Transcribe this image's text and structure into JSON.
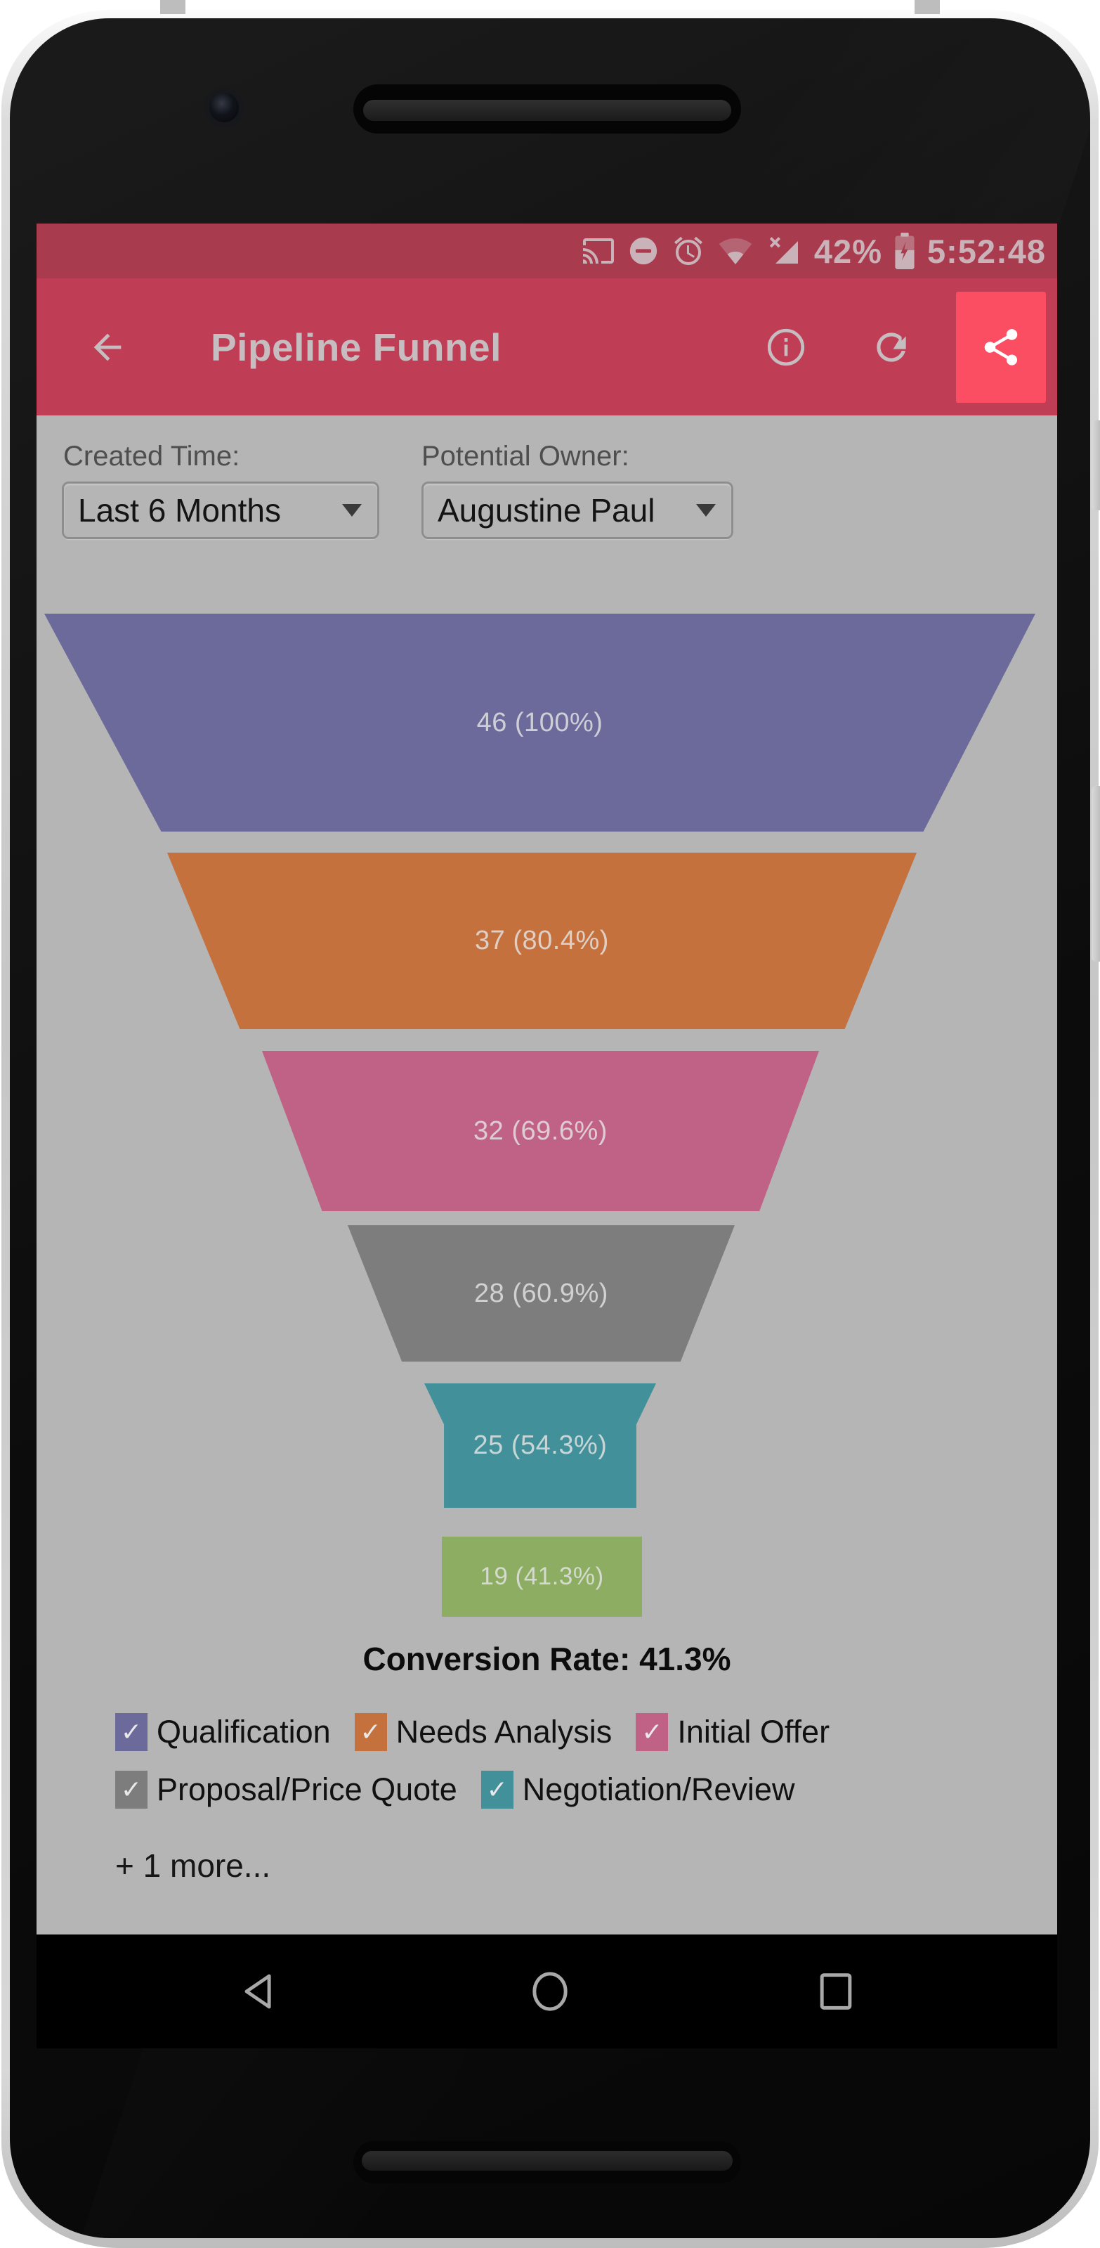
{
  "colors": {
    "status_bar": "#a93b4e",
    "app_bar": "#c03d56",
    "share_button": "#fb4e63",
    "content_bg": "#b5b5b5"
  },
  "status_bar": {
    "battery_percent": "42%",
    "time": "5:52:48",
    "icons": [
      "cast-icon",
      "do-not-disturb-icon",
      "alarm-icon",
      "wifi-icon",
      "cell-signal-no-network-icon",
      "battery-charging-icon"
    ]
  },
  "app_bar": {
    "title": "Pipeline Funnel",
    "icons": [
      "back-arrow-icon",
      "info-icon",
      "refresh-icon",
      "share-icon"
    ]
  },
  "filters": {
    "created_time": {
      "label": "Created Time:",
      "value": "Last 6 Months"
    },
    "potential_owner": {
      "label": "Potential Owner:",
      "value": "Augustine Paul"
    }
  },
  "chart_data": {
    "type": "funnel",
    "title": "Pipeline Funnel",
    "stages": [
      {
        "name": "Qualification",
        "value": 46,
        "percent": 100,
        "display": "46 (100%)",
        "color": "#6c6a9a"
      },
      {
        "name": "Needs Analysis",
        "value": 37,
        "percent": 80.4,
        "display": "37 (80.4%)",
        "color": "#c4713e"
      },
      {
        "name": "Initial Offer",
        "value": 32,
        "percent": 69.6,
        "display": "32 (69.6%)",
        "color": "#c06286"
      },
      {
        "name": "Proposal/Price Quote",
        "value": 28,
        "percent": 60.9,
        "display": "28 (60.9%)",
        "color": "#7d7d7d"
      },
      {
        "name": "Negotiation/Review",
        "value": 25,
        "percent": 54.3,
        "display": "25 (54.3%)",
        "color": "#42909a"
      },
      {
        "name": "",
        "value": 19,
        "percent": 41.3,
        "display": "19 (41.3%)",
        "color": "#8cad62"
      }
    ],
    "conversion_rate_label": "Conversion Rate: 41.3%"
  },
  "legend": {
    "items": [
      {
        "label": "Qualification",
        "color": "#6c6a9a",
        "checked": true
      },
      {
        "label": "Needs Analysis",
        "color": "#c4713e",
        "checked": true
      },
      {
        "label": "Initial Offer",
        "color": "#c06286",
        "checked": true
      },
      {
        "label": "Proposal/Price Quote",
        "color": "#7d7d7d",
        "checked": true
      },
      {
        "label": "Negotiation/Review",
        "color": "#42909a",
        "checked": true
      }
    ],
    "more_label": "+ 1 more..."
  },
  "nav_bar": {
    "icons": [
      "back-nav-icon",
      "home-nav-icon",
      "recents-nav-icon"
    ]
  }
}
